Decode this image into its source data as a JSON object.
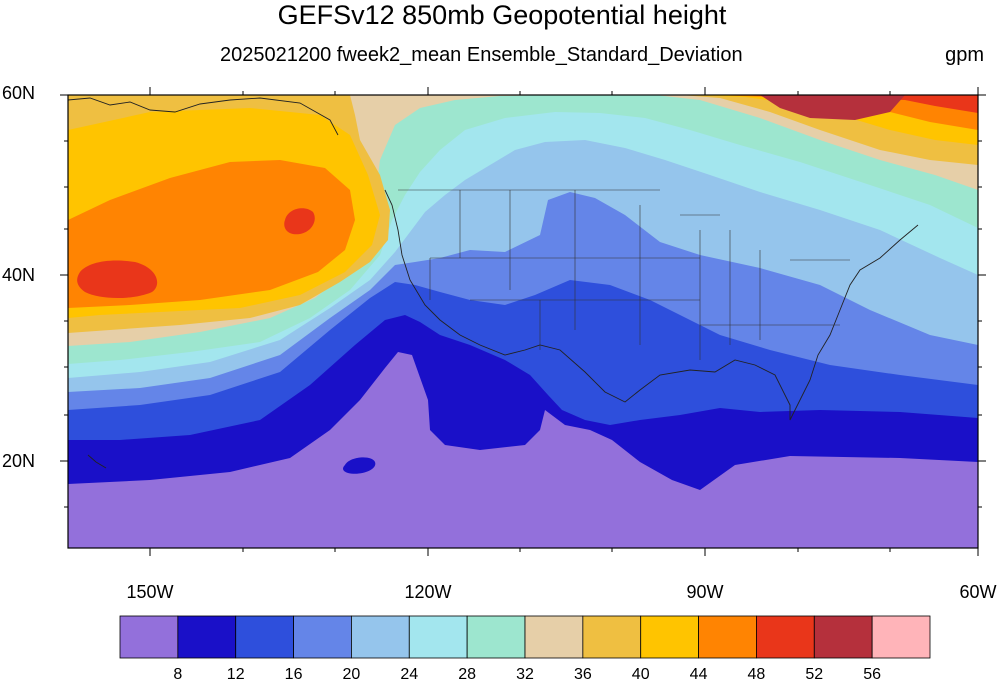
{
  "title": "GEFSv12 850mb Geopotential height",
  "subtitle": "2025021200 fweek2_mean Ensemble_Standard_Deviation",
  "units": "gpm",
  "lat_labels": [
    "60N",
    "40N",
    "20N"
  ],
  "lon_labels": [
    "150W",
    "120W",
    "90W",
    "60W"
  ],
  "colorbar": {
    "tick_labels": [
      "8",
      "12",
      "16",
      "20",
      "24",
      "28",
      "32",
      "36",
      "40",
      "44",
      "48",
      "52",
      "56"
    ],
    "colors": [
      "#9370db",
      "#1a10c8",
      "#2e4fdc",
      "#6485e8",
      "#95c5ec",
      "#a3e6ee",
      "#9de6cf",
      "#e6cfa8",
      "#efbf41",
      "#ffc400",
      "#ff8402",
      "#e9361a",
      "#b5303c",
      "#ffb4b9"
    ]
  },
  "map_extent": {
    "lon_min": -160,
    "lon_max": -60,
    "lat_min": 10,
    "lat_max": 60
  }
}
